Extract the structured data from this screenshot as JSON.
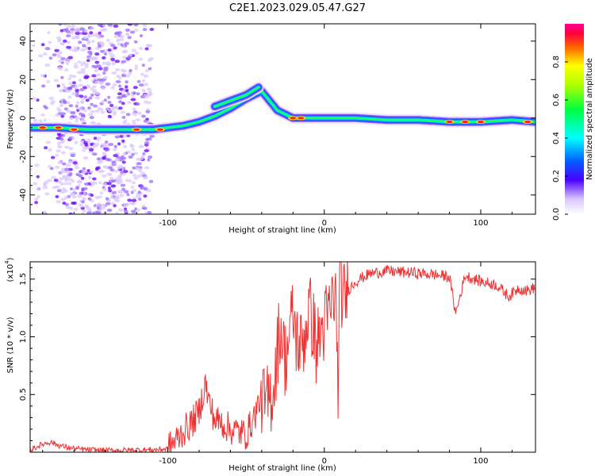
{
  "title": "C2E1.2023.029.05.47.G27",
  "colorbar": {
    "label": "Normalized spectral amplitude",
    "ticks": [
      "0.0",
      "0.2",
      "0.4",
      "0.6",
      "0.8"
    ],
    "range": [
      0,
      1
    ]
  },
  "chart_data": [
    {
      "type": "heatmap",
      "xlabel": "Height of straight line (km)",
      "ylabel": "Frequency (Hz)",
      "xlim": [
        -188,
        135
      ],
      "ylim": [
        -50,
        49
      ],
      "xticks": [
        -100,
        0,
        100
      ],
      "xtick_labels": [
        "-100",
        "0",
        "100"
      ],
      "yticks": [
        -40,
        -20,
        0,
        20,
        40
      ],
      "ytick_labels": [
        "-40",
        "-20",
        "0",
        "20",
        "40"
      ],
      "ridges": [
        {
          "name_hidden": true,
          "x": [
            -188,
            -170,
            -150,
            -130,
            -110,
            -100,
            -90,
            -80,
            -70,
            -60,
            -50,
            -40,
            -30,
            -20,
            -10,
            0,
            20,
            40,
            60,
            80,
            100,
            120,
            135
          ],
          "y": [
            -5,
            -5,
            -6,
            -6,
            -6,
            -5,
            -4,
            -2,
            1,
            5,
            10,
            14,
            4,
            0,
            0,
            0,
            0,
            -1,
            -1,
            -2,
            -2,
            -1,
            -2
          ]
        },
        {
          "name_hidden": true,
          "x": [
            -70,
            -60,
            -50,
            -42
          ],
          "y": [
            6,
            9,
            12,
            16
          ]
        }
      ],
      "noise_band_x": [
        -170,
        -110
      ]
    },
    {
      "type": "line",
      "xlabel": "Height of straight line (km)",
      "ylabel": "SNR (10 * v/v)",
      "yexponent_label": "(x10",
      "yexponent_power": "4",
      "yexponent_close": ")",
      "xlim": [
        -188,
        135
      ],
      "ylim": [
        0,
        16500
      ],
      "xticks": [
        -100,
        0,
        100
      ],
      "xtick_labels": [
        "-100",
        "0",
        "100"
      ],
      "yticks": [
        5000,
        10000,
        15000
      ],
      "ytick_labels": [
        "0.5",
        "1.0",
        "1.5"
      ],
      "color": "#ee3333",
      "series": [
        {
          "x": [
            -188,
            -180,
            -175,
            -170,
            -160,
            -150,
            -140,
            -130,
            -120,
            -110,
            -100,
            -95,
            -90,
            -85,
            -80,
            -76,
            -74,
            -70,
            -65,
            -60,
            -55,
            -50,
            -45,
            -40,
            -38,
            -35,
            -32,
            -30,
            -28,
            -25,
            -23,
            -20,
            -18,
            -15,
            -12,
            -10,
            -7,
            -5,
            -3,
            0,
            3,
            5,
            7,
            9,
            10,
            12,
            15,
            20,
            25,
            30,
            40,
            50,
            60,
            70,
            80,
            84,
            90,
            100,
            110,
            118,
            124,
            130,
            135
          ],
          "y": [
            200,
            700,
            900,
            600,
            300,
            200,
            150,
            150,
            200,
            200,
            300,
            1000,
            1800,
            2500,
            3500,
            6000,
            4500,
            2800,
            2500,
            2000,
            1800,
            1500,
            3000,
            5000,
            4000,
            4500,
            6000,
            9000,
            11000,
            8000,
            9500,
            12000,
            10000,
            9000,
            10500,
            12500,
            11000,
            9000,
            10000,
            11000,
            12000,
            13000,
            14000,
            5500,
            15500,
            13000,
            14000,
            14800,
            15200,
            15500,
            15700,
            15600,
            15500,
            15400,
            15200,
            12000,
            15300,
            14800,
            14500,
            13500,
            14200,
            14000,
            14300
          ]
        }
      ]
    }
  ]
}
